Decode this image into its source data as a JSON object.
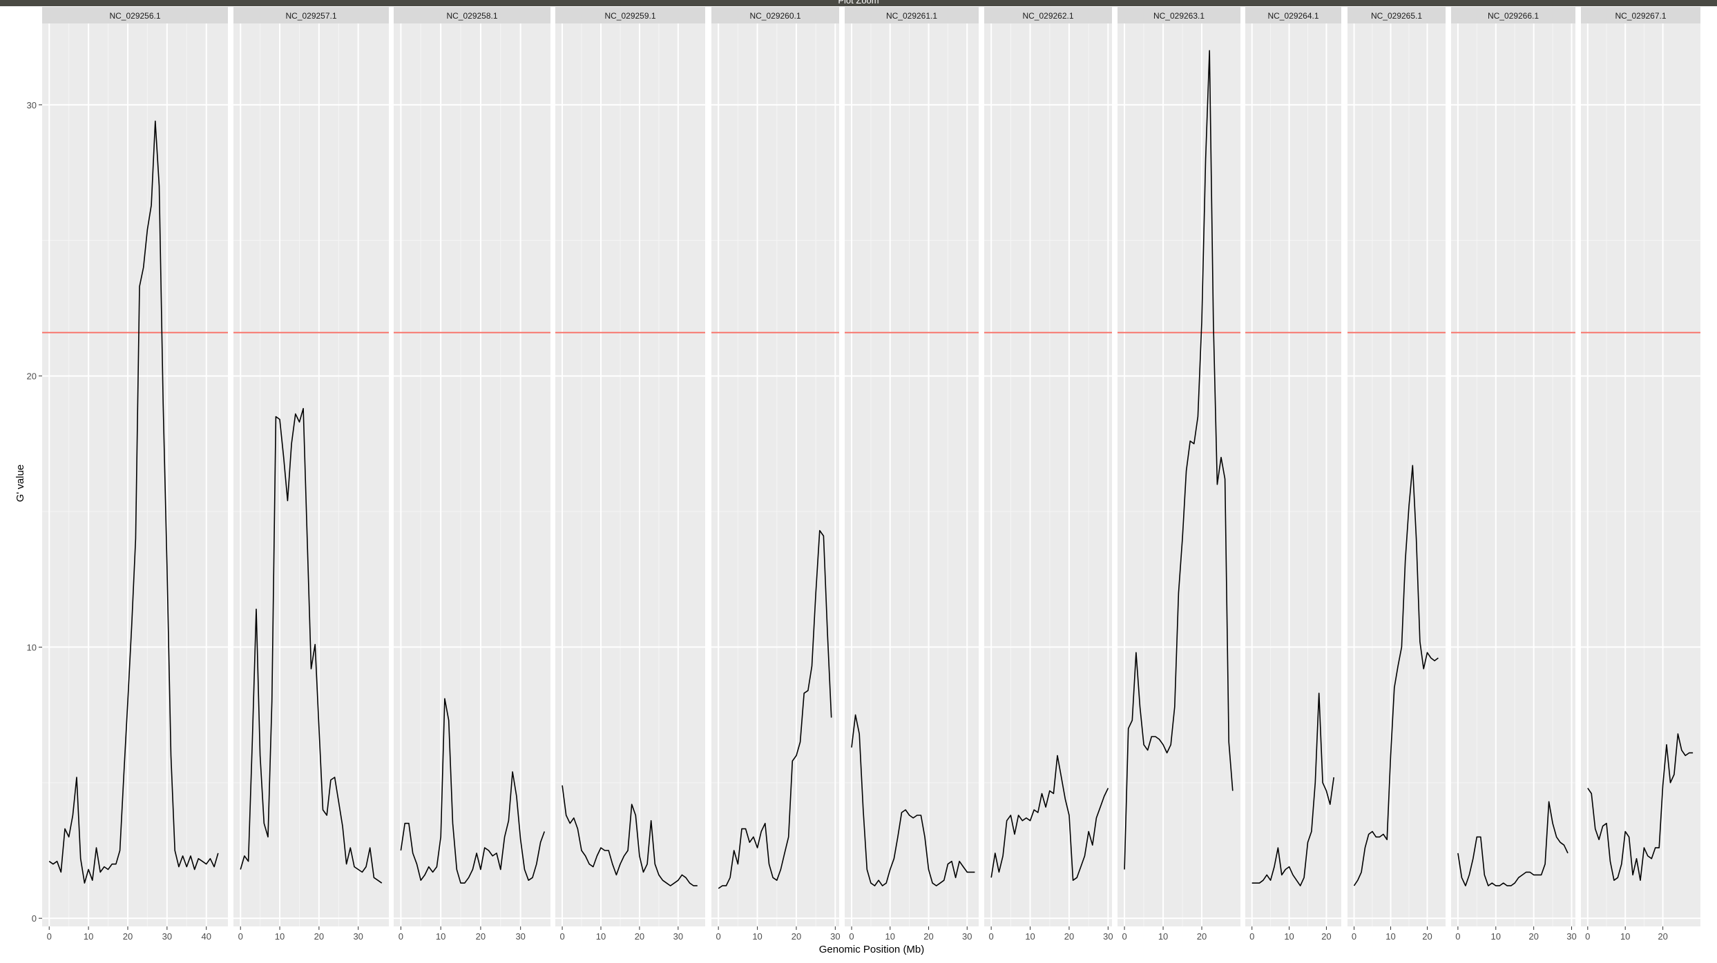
{
  "window": {
    "title": "Plot Zoom"
  },
  "chart_data": {
    "type": "line",
    "ylabel": "G' value",
    "xlabel": "Genomic Position (Mb)",
    "ylim": [
      -0.3,
      33.0
    ],
    "yticks": [
      0,
      10,
      20,
      30
    ],
    "threshold": {
      "value": 21.6,
      "color": "#f8766d"
    },
    "line_color": "#000000",
    "panel_bg": "#ebebeb",
    "strip_bg": "#d9d9d9",
    "grid": true,
    "panels": [
      {
        "name": "NC_029256.1",
        "xlim": [
          -1.8,
          45.5
        ],
        "xticks": [
          0,
          10,
          20,
          30,
          40
        ],
        "x": [
          0,
          1,
          2,
          3,
          4,
          5,
          6,
          7,
          8,
          9,
          10,
          11,
          12,
          13,
          14,
          15,
          16,
          17,
          18,
          19,
          20,
          21,
          22,
          23,
          24,
          25,
          26,
          27,
          28,
          29,
          30,
          31,
          32,
          33,
          34,
          35,
          36,
          37,
          38,
          39,
          40,
          41,
          42,
          43
        ],
        "y": [
          2.1,
          2.0,
          2.1,
          1.7,
          3.3,
          3.0,
          3.8,
          5.2,
          2.2,
          1.3,
          1.8,
          1.4,
          2.6,
          1.7,
          1.9,
          1.8,
          2.0,
          2.0,
          2.5,
          5.3,
          8.0,
          10.8,
          14.0,
          23.3,
          24.0,
          25.4,
          26.3,
          29.4,
          27.0,
          19.0,
          13.0,
          6.0,
          2.5,
          1.9,
          2.3,
          1.9,
          2.3,
          1.8,
          2.2,
          2.1,
          2.0,
          2.2,
          1.9,
          2.4
        ]
      },
      {
        "name": "NC_029257.1",
        "xlim": [
          -1.8,
          37.8
        ],
        "xticks": [
          0,
          10,
          20,
          30
        ],
        "x": [
          0,
          1,
          2,
          3,
          4,
          5,
          6,
          7,
          8,
          9,
          10,
          11,
          12,
          13,
          14,
          15,
          16,
          17,
          18,
          19,
          20,
          21,
          22,
          23,
          24,
          25,
          26,
          27,
          28,
          29,
          30,
          31,
          32,
          33,
          34,
          35,
          36
        ],
        "y": [
          1.8,
          2.3,
          2.1,
          6.5,
          11.4,
          6.0,
          3.5,
          3.0,
          8.0,
          18.5,
          18.4,
          17.0,
          15.4,
          17.5,
          18.6,
          18.3,
          18.8,
          14.0,
          9.2,
          10.1,
          7.0,
          4.0,
          3.8,
          5.1,
          5.2,
          4.3,
          3.4,
          2.0,
          2.6,
          1.9,
          1.8,
          1.7,
          1.9,
          2.6,
          1.5,
          1.4,
          1.3
        ]
      },
      {
        "name": "NC_029258.1",
        "xlim": [
          -1.8,
          37.5
        ],
        "xticks": [
          0,
          10,
          20,
          30
        ],
        "x": [
          0,
          1,
          2,
          3,
          4,
          5,
          6,
          7,
          8,
          9,
          10,
          11,
          12,
          13,
          14,
          15,
          16,
          17,
          18,
          19,
          20,
          21,
          22,
          23,
          24,
          25,
          26,
          27,
          28,
          29,
          30,
          31,
          32,
          33,
          34,
          35,
          36
        ],
        "y": [
          2.5,
          3.5,
          3.5,
          2.4,
          2.0,
          1.4,
          1.6,
          1.9,
          1.7,
          1.9,
          3.0,
          8.1,
          7.3,
          3.5,
          1.8,
          1.3,
          1.3,
          1.5,
          1.8,
          2.4,
          1.8,
          2.6,
          2.5,
          2.3,
          2.4,
          1.8,
          3.0,
          3.6,
          5.4,
          4.5,
          2.9,
          1.8,
          1.4,
          1.5,
          2.0,
          2.8,
          3.2
        ]
      },
      {
        "name": "NC_029259.1",
        "xlim": [
          -1.8,
          37.0
        ],
        "xticks": [
          0,
          10,
          20,
          30
        ],
        "x": [
          0,
          1,
          2,
          3,
          4,
          5,
          6,
          7,
          8,
          9,
          10,
          11,
          12,
          13,
          14,
          15,
          16,
          17,
          18,
          19,
          20,
          21,
          22,
          23,
          24,
          25,
          26,
          27,
          28,
          29,
          30,
          31,
          32,
          33,
          34,
          35
        ],
        "y": [
          4.9,
          3.8,
          3.5,
          3.7,
          3.3,
          2.5,
          2.3,
          2.0,
          1.9,
          2.3,
          2.6,
          2.5,
          2.5,
          2.0,
          1.6,
          2.0,
          2.3,
          2.5,
          4.2,
          3.8,
          2.3,
          1.7,
          2.0,
          3.6,
          2.0,
          1.6,
          1.4,
          1.3,
          1.2,
          1.3,
          1.4,
          1.6,
          1.5,
          1.3,
          1.2,
          1.2
        ]
      },
      {
        "name": "NC_029260.1",
        "xlim": [
          -1.8,
          31.0
        ],
        "xticks": [
          0,
          10,
          20,
          30
        ],
        "x": [
          0,
          1,
          2,
          3,
          4,
          5,
          6,
          7,
          8,
          9,
          10,
          11,
          12,
          13,
          14,
          15,
          16,
          17,
          18,
          19,
          20,
          21,
          22,
          23,
          24,
          25,
          26,
          27,
          28,
          29
        ],
        "y": [
          1.1,
          1.2,
          1.2,
          1.5,
          2.5,
          2.0,
          3.3,
          3.3,
          2.8,
          3.0,
          2.6,
          3.2,
          3.5,
          2.0,
          1.5,
          1.4,
          1.8,
          2.4,
          3.0,
          5.8,
          6.0,
          6.5,
          8.3,
          8.4,
          9.3,
          12.0,
          14.3,
          14.1,
          10.5,
          7.4
        ]
      },
      {
        "name": "NC_029261.1",
        "xlim": [
          -1.8,
          33.0
        ],
        "xticks": [
          0,
          10,
          20,
          30
        ],
        "x": [
          0,
          1,
          2,
          3,
          4,
          5,
          6,
          7,
          8,
          9,
          10,
          11,
          12,
          13,
          14,
          15,
          16,
          17,
          18,
          19,
          20,
          21,
          22,
          23,
          24,
          25,
          26,
          27,
          28,
          29,
          30,
          31,
          32
        ],
        "y": [
          6.3,
          7.5,
          6.8,
          4.0,
          1.8,
          1.3,
          1.2,
          1.4,
          1.2,
          1.3,
          1.8,
          2.2,
          3.0,
          3.9,
          4.0,
          3.8,
          3.7,
          3.8,
          3.8,
          3.0,
          1.8,
          1.3,
          1.2,
          1.3,
          1.4,
          2.0,
          2.1,
          1.5,
          2.1,
          1.9,
          1.7,
          1.7,
          1.7
        ]
      },
      {
        "name": "NC_029262.1",
        "xlim": [
          -1.8,
          31.0
        ],
        "xticks": [
          0,
          10,
          20,
          30
        ],
        "x": [
          0,
          1,
          2,
          3,
          4,
          5,
          6,
          7,
          8,
          9,
          10,
          11,
          12,
          13,
          14,
          15,
          16,
          17,
          18,
          19,
          20,
          21,
          22,
          23,
          24,
          25,
          26,
          27,
          28,
          29,
          30
        ],
        "y": [
          1.5,
          2.4,
          1.7,
          2.3,
          3.6,
          3.8,
          3.1,
          3.8,
          3.6,
          3.7,
          3.6,
          4.0,
          3.9,
          4.6,
          4.1,
          4.7,
          4.6,
          6.0,
          5.2,
          4.4,
          3.8,
          1.4,
          1.5,
          1.9,
          2.3,
          3.2,
          2.7,
          3.7,
          4.1,
          4.5,
          4.8
        ]
      },
      {
        "name": "NC_029263.1",
        "xlim": [
          -1.8,
          30.0
        ],
        "xticks": [
          0,
          10,
          20
        ],
        "x": [
          0,
          1,
          2,
          3,
          4,
          5,
          6,
          7,
          8,
          9,
          10,
          11,
          12,
          13,
          14,
          15,
          16,
          17,
          18,
          19,
          20,
          21,
          22,
          23,
          24,
          25,
          26,
          27,
          28
        ],
        "y": [
          1.8,
          7.0,
          7.3,
          9.8,
          7.8,
          6.4,
          6.2,
          6.7,
          6.7,
          6.6,
          6.4,
          6.1,
          6.4,
          7.8,
          12.0,
          14.0,
          16.5,
          17.6,
          17.5,
          18.5,
          22.0,
          28.0,
          32.0,
          22.0,
          16.0,
          17.0,
          16.2,
          6.5,
          4.7
        ]
      },
      {
        "name": "NC_029264.1",
        "xlim": [
          -1.8,
          24.0
        ],
        "xticks": [
          0,
          10,
          20
        ],
        "x": [
          0,
          1,
          2,
          3,
          4,
          5,
          6,
          7,
          8,
          9,
          10,
          11,
          12,
          13,
          14,
          15,
          16,
          17,
          18,
          19,
          20,
          21,
          22
        ],
        "y": [
          1.3,
          1.3,
          1.3,
          1.4,
          1.6,
          1.4,
          1.9,
          2.6,
          1.6,
          1.8,
          1.9,
          1.6,
          1.4,
          1.2,
          1.5,
          2.8,
          3.2,
          5.0,
          8.3,
          5.0,
          4.7,
          4.2,
          5.2
        ]
      },
      {
        "name": "NC_029265.1",
        "xlim": [
          -1.8,
          25.0
        ],
        "xticks": [
          0,
          10,
          20
        ],
        "x": [
          0,
          1,
          2,
          3,
          4,
          5,
          6,
          7,
          8,
          9,
          10,
          11,
          12,
          13,
          14,
          15,
          16,
          17,
          18,
          19,
          20,
          21,
          22,
          23
        ],
        "y": [
          1.2,
          1.4,
          1.7,
          2.6,
          3.1,
          3.2,
          3.0,
          3.0,
          3.1,
          2.9,
          6.0,
          8.5,
          9.3,
          10.0,
          13.2,
          15.2,
          16.7,
          14.0,
          10.2,
          9.2,
          9.8,
          9.6,
          9.5,
          9.6
        ]
      },
      {
        "name": "NC_029266.1",
        "xlim": [
          -1.8,
          31.0
        ],
        "xticks": [
          0,
          10,
          20,
          30
        ],
        "x": [
          0,
          1,
          2,
          3,
          4,
          5,
          6,
          7,
          8,
          9,
          10,
          11,
          12,
          13,
          14,
          15,
          16,
          17,
          18,
          19,
          20,
          21,
          22,
          23,
          24,
          25,
          26,
          27,
          28,
          29
        ],
        "y": [
          2.4,
          1.5,
          1.2,
          1.6,
          2.2,
          3.0,
          3.0,
          1.6,
          1.2,
          1.3,
          1.2,
          1.2,
          1.3,
          1.2,
          1.2,
          1.3,
          1.5,
          1.6,
          1.7,
          1.7,
          1.6,
          1.6,
          1.6,
          2.0,
          4.3,
          3.5,
          3.0,
          2.8,
          2.7,
          2.4
        ]
      },
      {
        "name": "NC_029267.1",
        "xlim": [
          -1.8,
          30.0
        ],
        "xticks": [
          0,
          10,
          20
        ],
        "x": [
          0,
          1,
          2,
          3,
          4,
          5,
          6,
          7,
          8,
          9,
          10,
          11,
          12,
          13,
          14,
          15,
          16,
          17,
          18,
          19,
          20,
          21,
          22,
          23,
          24,
          25,
          26,
          27,
          28
        ],
        "y": [
          4.8,
          4.6,
          3.3,
          2.9,
          3.4,
          3.5,
          2.1,
          1.4,
          1.5,
          2.0,
          3.2,
          3.0,
          1.6,
          2.2,
          1.4,
          2.6,
          2.3,
          2.2,
          2.6,
          2.6,
          4.9,
          6.4,
          5.0,
          5.3,
          6.8,
          6.2,
          6.0,
          6.1,
          6.1
        ]
      }
    ]
  }
}
